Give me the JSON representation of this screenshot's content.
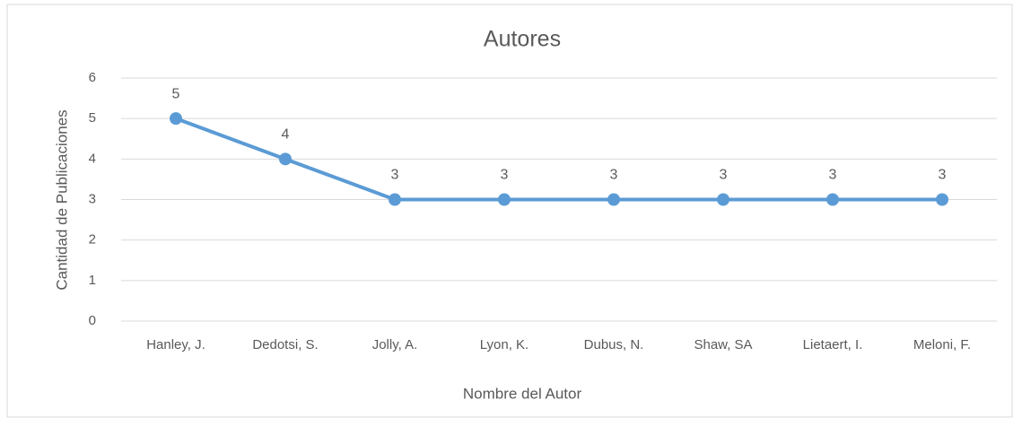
{
  "chart_data": {
    "type": "line",
    "title": "Autores",
    "categories": [
      "Hanley, J.",
      "Dedotsi, S.",
      "Jolly, A.",
      "Lyon, K.",
      "Dubus, N.",
      "Shaw, SA",
      "Lietaert, I.",
      "Meloni, F."
    ],
    "series": [
      {
        "name": "Autores",
        "color": "#5b9bd5",
        "values": [
          5,
          4,
          3,
          3,
          3,
          3,
          3,
          3
        ]
      }
    ],
    "xlabel": "Nombre del Autor",
    "ylabel": "Cantidad de Publicaciones",
    "ylim": [
      0,
      6
    ],
    "yticks": [
      0,
      1,
      2,
      3,
      4,
      5,
      6
    ],
    "grid": true
  }
}
